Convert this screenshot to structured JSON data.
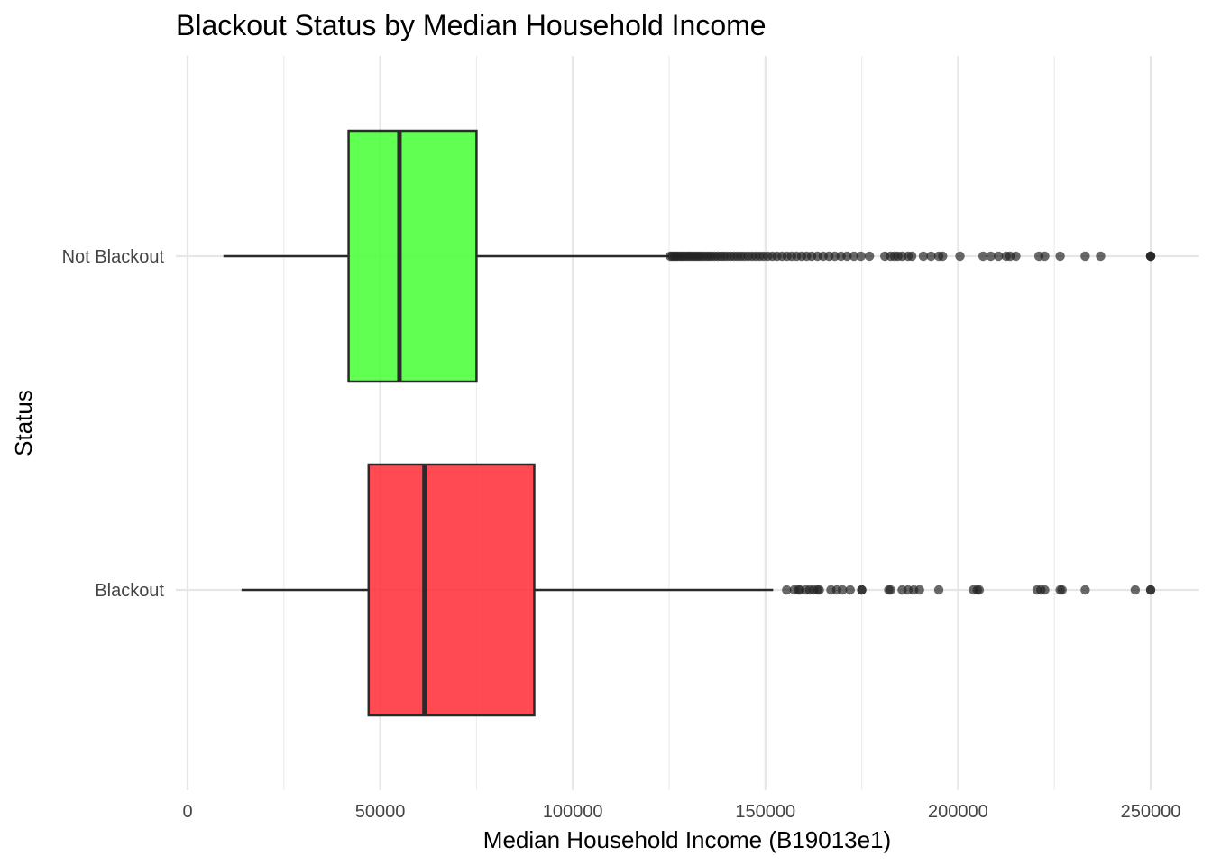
{
  "chart_data": {
    "type": "boxplot",
    "orientation": "horizontal",
    "title": "Blackout Status by Median Household Income",
    "xlabel": "Median Household Income (B19013e1)",
    "ylabel": "Status",
    "xlim": [
      -5000,
      262000
    ],
    "xticks": [
      0,
      50000,
      100000,
      150000,
      200000,
      250000
    ],
    "xtick_labels": [
      "0",
      "50000",
      "100000",
      "150000",
      "200000",
      "250000"
    ],
    "grid": true,
    "legend": "none",
    "categories": [
      "Not Blackout",
      "Blackout"
    ],
    "boxes": [
      {
        "category": "Not Blackout",
        "color": "#44ff33",
        "whisker_low": 9300,
        "q1": 41800,
        "median": 55000,
        "q3": 75000,
        "whisker_high": 125000,
        "outliers": [
          125300,
          125800,
          126300,
          126800,
          127300,
          127900,
          128400,
          129000,
          129600,
          130200,
          130800,
          131400,
          132000,
          132600,
          133200,
          133900,
          134600,
          135300,
          136000,
          136800,
          137600,
          138400,
          139200,
          140000,
          140900,
          141800,
          142700,
          143600,
          144500,
          145500,
          146500,
          147500,
          148500,
          149500,
          150600,
          151800,
          153000,
          154300,
          155600,
          156800,
          158100,
          159400,
          160700,
          162000,
          163500,
          165000,
          166500,
          168000,
          169600,
          171200,
          173000,
          174800,
          177000,
          181000,
          182500,
          183500,
          184400,
          185500,
          187000,
          188000,
          191000,
          193000,
          195000,
          196000,
          200500,
          206500,
          208500,
          210500,
          212500,
          213500,
          215000,
          221000,
          222500,
          226500,
          233000,
          237000,
          250000,
          250000,
          250000
        ]
      },
      {
        "category": "Blackout",
        "color": "#ff2a36",
        "whisker_low": 14000,
        "q1": 47000,
        "median": 61500,
        "q3": 90000,
        "whisker_high": 152000,
        "outliers": [
          155500,
          157500,
          158500,
          159000,
          160500,
          161500,
          162500,
          163500,
          164000,
          167000,
          168500,
          170000,
          172000,
          175000,
          175000,
          182000,
          182500,
          185500,
          187000,
          188500,
          190000,
          195000,
          204000,
          205000,
          205500,
          220500,
          221500,
          222500,
          226500,
          227000,
          233000,
          246000,
          250000,
          250000
        ]
      }
    ]
  }
}
